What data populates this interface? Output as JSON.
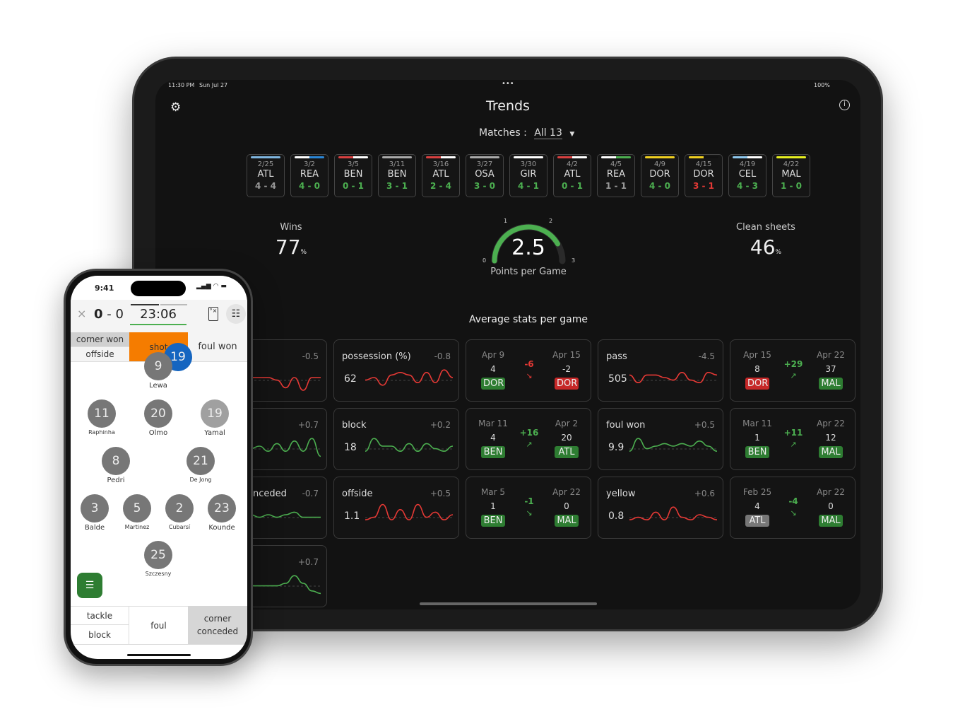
{
  "ipad": {
    "time": "11:30 PM",
    "date": "Sun Jul 27",
    "battery": "100%",
    "title": "Trends",
    "matches_label": "Matches :",
    "matches_value": "All 13",
    "matches": [
      {
        "date": "2/25",
        "team": "ATL",
        "score": "4 - 4",
        "result": "draw",
        "bar": [
          "#7fb6e0",
          "#7fb6e0"
        ]
      },
      {
        "date": "3/2",
        "team": "REA",
        "score": "4 - 0",
        "result": "win",
        "bar": [
          "#ffffff",
          "#2a86d6"
        ]
      },
      {
        "date": "3/5",
        "team": "BEN",
        "score": "0 - 1",
        "result": "win",
        "bar": [
          "#d84040",
          "#ffffff"
        ]
      },
      {
        "date": "3/11",
        "team": "BEN",
        "score": "3 - 1",
        "result": "win",
        "bar": [
          "#aaaaaa",
          "#aaaaaa"
        ]
      },
      {
        "date": "3/16",
        "team": "ATL",
        "score": "2 - 4",
        "result": "win",
        "bar": [
          "#d84040",
          "#ffffff"
        ]
      },
      {
        "date": "3/27",
        "team": "OSA",
        "score": "3 - 0",
        "result": "win",
        "bar": [
          "#aaaaaa",
          "#aaaaaa"
        ]
      },
      {
        "date": "3/30",
        "team": "GIR",
        "score": "4 - 1",
        "result": "win",
        "bar": [
          "#ffffff",
          "#ffffff"
        ]
      },
      {
        "date": "4/2",
        "team": "ATL",
        "score": "0 - 1",
        "result": "win",
        "bar": [
          "#d84040",
          "#ffffff"
        ]
      },
      {
        "date": "4/5",
        "team": "REA",
        "score": "1 - 1",
        "result": "draw",
        "bar": [
          "#ffffff",
          "#4caf50"
        ]
      },
      {
        "date": "4/9",
        "team": "DOR",
        "score": "4 - 0",
        "result": "win",
        "bar": [
          "#f0d020",
          "#f0d020"
        ]
      },
      {
        "date": "4/15",
        "team": "DOR",
        "score": "3 - 1",
        "result": "loss",
        "bar": [
          "#f0d020",
          "#111111"
        ]
      },
      {
        "date": "4/19",
        "team": "CEL",
        "score": "4 - 3",
        "result": "win",
        "bar": [
          "#8fc8ee",
          "#ffffff"
        ]
      },
      {
        "date": "4/22",
        "team": "MAL",
        "score": "1 - 0",
        "result": "win",
        "bar": [
          "#e8f020",
          "#e8f020"
        ]
      }
    ],
    "wins_label": "Wins",
    "wins_value": "77",
    "wins_unit": "%",
    "ppg_value": "2.5",
    "ppg_label": "Points per Game",
    "ppg_fraction": 0.833,
    "gauge_ticks": [
      "0",
      "1",
      "2",
      "3"
    ],
    "clean_label": "Clean sheets",
    "clean_value": "46",
    "clean_unit": "%",
    "avg_title": "Average stats per game",
    "stat_cards": [
      {
        "label": "",
        "diff": "-0.5",
        "trend": "red",
        "spark": [
          5,
          5,
          5,
          5,
          5,
          4,
          1,
          5,
          0,
          5,
          5
        ]
      },
      {
        "label": "",
        "diff": "+0.7",
        "trend": "green",
        "spark": [
          5,
          5,
          4,
          5,
          3,
          6,
          3,
          7,
          3,
          8,
          1
        ]
      },
      {
        "label": "corner conceded",
        "diff": "-0.7",
        "trend": "green",
        "spark": [
          5,
          4,
          5,
          4,
          5,
          4,
          5,
          6,
          4,
          4,
          4
        ]
      },
      {
        "label": "",
        "diff": "+0.7",
        "trend": "green",
        "spark": [
          4,
          4,
          4,
          4,
          4,
          4,
          5,
          8,
          5,
          2,
          1
        ]
      },
      {
        "label": "possession (%)",
        "value": "62",
        "diff": "-0.8",
        "trend": "red",
        "spark": [
          4,
          5,
          2,
          6,
          7,
          6,
          3,
          7,
          3,
          8,
          5
        ]
      },
      {
        "label": "block",
        "value": "18",
        "diff": "+0.2",
        "trend": "green",
        "spark": [
          3,
          8,
          5,
          5,
          3,
          6,
          3,
          6,
          4,
          3,
          5
        ]
      },
      {
        "label": "offside",
        "value": "1.1",
        "diff": "+0.5",
        "trend": "red",
        "spark": [
          3,
          4,
          9,
          3,
          7,
          3,
          9,
          4,
          6,
          3,
          5
        ]
      },
      {
        "label": "pass",
        "value": "505",
        "diff": "-4.5",
        "trend": "red",
        "spark": [
          6,
          3,
          6,
          6,
          5,
          4,
          7,
          4,
          3,
          7,
          6
        ]
      },
      {
        "label": "foul won",
        "value": "9.9",
        "diff": "+0.5",
        "trend": "green",
        "spark": [
          3,
          8,
          4,
          5,
          6,
          5,
          6,
          5,
          7,
          5,
          3
        ]
      },
      {
        "label": "yellow",
        "value": "0.8",
        "diff": "+0.6",
        "trend": "red",
        "spark": [
          3,
          4,
          3,
          6,
          3,
          8,
          4,
          3,
          5,
          4,
          3
        ]
      }
    ],
    "compare_cards": [
      {
        "from_date": "Apr 9",
        "from_val": "4",
        "from_team": "DOR",
        "from_color": "#2e7d32",
        "delta": "-6",
        "delta_color": "#e53935",
        "to_date": "Apr 15",
        "to_val": "-2",
        "to_team": "DOR",
        "to_color": "#c62828",
        "arrow": "trending-down-icon"
      },
      {
        "from_date": "Apr 15",
        "from_val": "8",
        "from_team": "DOR",
        "from_color": "#c62828",
        "delta": "+29",
        "delta_color": "#4caf50",
        "to_date": "Apr 22",
        "to_val": "37",
        "to_team": "MAL",
        "to_color": "#2e7d32",
        "arrow": "trending-up-icon"
      },
      {
        "from_date": "Mar 11",
        "from_val": "4",
        "from_team": "BEN",
        "from_color": "#2e7d32",
        "delta": "+16",
        "delta_color": "#4caf50",
        "to_date": "Apr 2",
        "to_val": "20",
        "to_team": "ATL",
        "to_color": "#2e7d32",
        "arrow": "trending-up-icon"
      },
      {
        "from_date": "Mar 11",
        "from_val": "1",
        "from_team": "BEN",
        "from_color": "#2e7d32",
        "delta": "+11",
        "delta_color": "#4caf50",
        "to_date": "Apr 22",
        "to_val": "12",
        "to_team": "MAL",
        "to_color": "#2e7d32",
        "arrow": "trending-up-icon"
      },
      {
        "from_date": "Mar 5",
        "from_val": "1",
        "from_team": "BEN",
        "from_color": "#2e7d32",
        "delta": "-1",
        "delta_color": "#4caf50",
        "to_date": "Apr 22",
        "to_val": "0",
        "to_team": "MAL",
        "to_color": "#2e7d32",
        "arrow": "trending-down-icon"
      },
      {
        "from_date": "Feb 25",
        "from_val": "4",
        "from_team": "ATL",
        "from_color": "#777777",
        "delta": "-4",
        "delta_color": "#4caf50",
        "to_date": "Apr 22",
        "to_val": "0",
        "to_team": "MAL",
        "to_color": "#2e7d32",
        "arrow": "trending-down-icon"
      }
    ]
  },
  "phone": {
    "time": "9:41",
    "score_home": "0",
    "score_sep": "-",
    "score_away": "0",
    "clock": "23:06",
    "actions_top": [
      "corner won",
      "offside"
    ],
    "action_shot": "shot",
    "action_foul_won": "foul won",
    "selected_player": "19",
    "players": [
      {
        "num": "9",
        "name": "Lewa"
      },
      {
        "num": "11",
        "name": "Raphinha"
      },
      {
        "num": "20",
        "name": "Olmo"
      },
      {
        "num": "19",
        "name": "Yamal"
      },
      {
        "num": "8",
        "name": "Pedri"
      },
      {
        "num": "21",
        "name": "De Jong"
      },
      {
        "num": "3",
        "name": "Balde"
      },
      {
        "num": "5",
        "name": "Martinez"
      },
      {
        "num": "2",
        "name": "Cubarsí"
      },
      {
        "num": "23",
        "name": "Kounde"
      },
      {
        "num": "25",
        "name": "Szczesny"
      }
    ],
    "actions_bottom": {
      "tackle": "tackle",
      "block": "block",
      "foul": "foul",
      "corner_conceded": "corner conceded"
    }
  },
  "colors": {
    "green": "#4caf50",
    "red": "#e53935",
    "orange": "#f57c00",
    "blue": "#1565c0"
  }
}
